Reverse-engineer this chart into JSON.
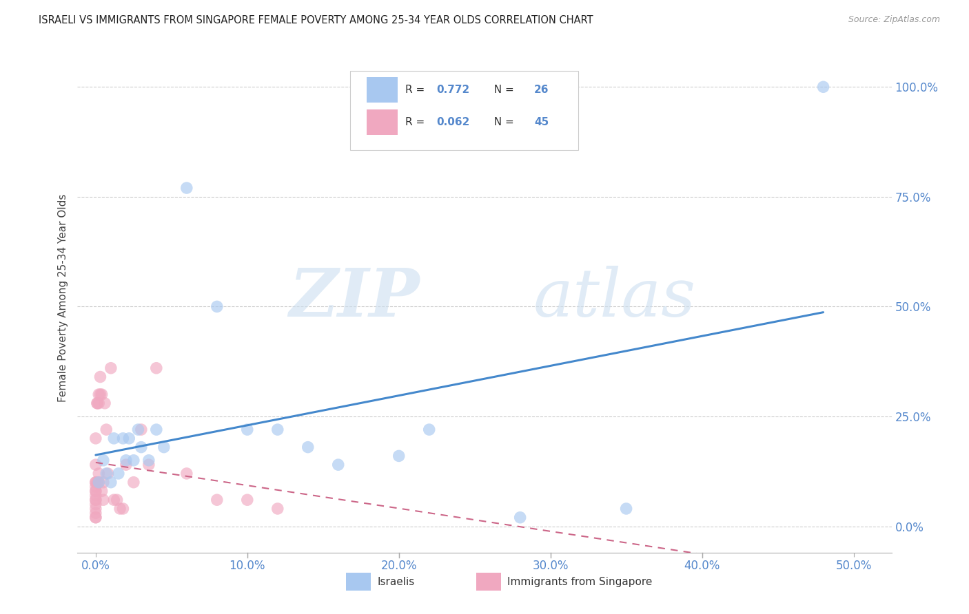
{
  "title": "ISRAELI VS IMMIGRANTS FROM SINGAPORE FEMALE POVERTY AMONG 25-34 YEAR OLDS CORRELATION CHART",
  "source": "Source: ZipAtlas.com",
  "ylabel": "Female Poverty Among 25-34 Year Olds",
  "x_tick_labels": [
    "0.0%",
    "10.0%",
    "20.0%",
    "30.0%",
    "40.0%",
    "50.0%"
  ],
  "x_tick_values": [
    0.0,
    0.1,
    0.2,
    0.3,
    0.4,
    0.5
  ],
  "y_tick_labels": [
    "0.0%",
    "25.0%",
    "50.0%",
    "75.0%",
    "100.0%"
  ],
  "y_tick_values": [
    0.0,
    0.25,
    0.5,
    0.75,
    1.0
  ],
  "xlim": [
    -0.012,
    0.525
  ],
  "ylim": [
    -0.06,
    1.1
  ],
  "watermark_zip": "ZIP",
  "watermark_atlas": "atlas",
  "legend_R1": "0.772",
  "legend_N1": "26",
  "legend_R2": "0.062",
  "legend_N2": "45",
  "legend_label1": "Israelis",
  "legend_label2": "Immigrants from Singapore",
  "color_israeli": "#a8c8f0",
  "color_singapore": "#f0a8c0",
  "color_line_israeli": "#4488cc",
  "color_line_singapore": "#cc6688",
  "israelis_x": [
    0.002,
    0.005,
    0.007,
    0.01,
    0.012,
    0.015,
    0.018,
    0.02,
    0.022,
    0.025,
    0.028,
    0.03,
    0.035,
    0.04,
    0.045,
    0.06,
    0.08,
    0.1,
    0.12,
    0.14,
    0.16,
    0.2,
    0.22,
    0.28,
    0.35,
    0.48
  ],
  "israelis_y": [
    0.1,
    0.15,
    0.12,
    0.1,
    0.2,
    0.12,
    0.2,
    0.15,
    0.2,
    0.15,
    0.22,
    0.18,
    0.15,
    0.22,
    0.18,
    0.77,
    0.5,
    0.22,
    0.22,
    0.18,
    0.14,
    0.16,
    0.22,
    0.02,
    0.04,
    1.0
  ],
  "singapore_x": [
    0.0,
    0.0,
    0.0,
    0.0,
    0.0,
    0.0,
    0.0,
    0.0,
    0.0,
    0.0,
    0.0,
    0.0,
    0.0,
    0.0,
    0.0,
    0.001,
    0.001,
    0.001,
    0.002,
    0.002,
    0.002,
    0.002,
    0.003,
    0.003,
    0.004,
    0.004,
    0.005,
    0.005,
    0.006,
    0.007,
    0.008,
    0.01,
    0.012,
    0.014,
    0.016,
    0.018,
    0.02,
    0.025,
    0.03,
    0.035,
    0.04,
    0.06,
    0.08,
    0.1,
    0.12
  ],
  "singapore_y": [
    0.1,
    0.1,
    0.09,
    0.08,
    0.08,
    0.07,
    0.06,
    0.06,
    0.05,
    0.04,
    0.03,
    0.02,
    0.02,
    0.14,
    0.2,
    0.1,
    0.28,
    0.28,
    0.1,
    0.12,
    0.28,
    0.3,
    0.3,
    0.34,
    0.08,
    0.3,
    0.06,
    0.1,
    0.28,
    0.22,
    0.12,
    0.36,
    0.06,
    0.06,
    0.04,
    0.04,
    0.14,
    0.1,
    0.22,
    0.14,
    0.36,
    0.12,
    0.06,
    0.06,
    0.04
  ],
  "background_color": "#ffffff",
  "grid_color": "#cccccc",
  "tick_color": "#5588cc",
  "title_color": "#222222",
  "source_color": "#999999"
}
